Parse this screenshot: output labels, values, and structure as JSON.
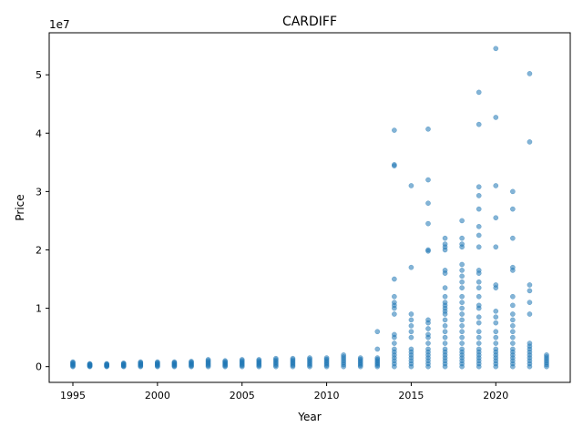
{
  "chart_data": {
    "type": "scatter",
    "title": "CARDIFF",
    "xlabel": "Year",
    "ylabel": "Price",
    "y_multiplier_label": "1e7",
    "xlim": [
      1993.6,
      2024.4
    ],
    "ylim": [
      -2.7,
      57.2
    ],
    "y_unit": "1e7",
    "grid": false,
    "color": "#1f77b4",
    "x_ticks": [
      1995,
      2000,
      2005,
      2010,
      2015,
      2020
    ],
    "x_tick_labels": [
      "1995",
      "2000",
      "2005",
      "2010",
      "2015",
      "2020"
    ],
    "y_ticks": [
      0,
      1,
      2,
      3,
      4,
      5
    ],
    "y_tick_labels": [
      "0",
      "1",
      "2",
      "3",
      "4",
      "5"
    ],
    "base_points": [
      {
        "year": 1995,
        "max": 0.08
      },
      {
        "year": 1996,
        "max": 0.05
      },
      {
        "year": 1997,
        "max": 0.05
      },
      {
        "year": 1998,
        "max": 0.06
      },
      {
        "year": 1999,
        "max": 0.08
      },
      {
        "year": 2000,
        "max": 0.08
      },
      {
        "year": 2001,
        "max": 0.08
      },
      {
        "year": 2002,
        "max": 0.09
      },
      {
        "year": 2003,
        "max": 0.12
      },
      {
        "year": 2004,
        "max": 0.1
      },
      {
        "year": 2005,
        "max": 0.12
      },
      {
        "year": 2006,
        "max": 0.12
      },
      {
        "year": 2007,
        "max": 0.14
      },
      {
        "year": 2008,
        "max": 0.14
      },
      {
        "year": 2009,
        "max": 0.15
      },
      {
        "year": 2010,
        "max": 0.15
      },
      {
        "year": 2011,
        "max": 0.2
      },
      {
        "year": 2012,
        "max": 0.15
      },
      {
        "year": 2013,
        "max": 0.15
      },
      {
        "year": 2014,
        "max": 0.3
      },
      {
        "year": 2015,
        "max": 0.3
      },
      {
        "year": 2016,
        "max": 0.3
      },
      {
        "year": 2017,
        "max": 0.3
      },
      {
        "year": 2018,
        "max": 0.3
      },
      {
        "year": 2019,
        "max": 0.3
      },
      {
        "year": 2020,
        "max": 0.3
      },
      {
        "year": 2021,
        "max": 0.3
      },
      {
        "year": 2022,
        "max": 0.3
      },
      {
        "year": 2023,
        "max": 0.2
      }
    ],
    "outliers": [
      [
        2013,
        0.3
      ],
      [
        2013,
        0.6
      ],
      [
        2014,
        0.4
      ],
      [
        2014,
        0.5
      ],
      [
        2014,
        0.55
      ],
      [
        2014,
        0.9
      ],
      [
        2014,
        1.0
      ],
      [
        2014,
        1.05
      ],
      [
        2014,
        1.1
      ],
      [
        2014,
        1.2
      ],
      [
        2014,
        1.5
      ],
      [
        2014,
        3.44
      ],
      [
        2014,
        3.46
      ],
      [
        2014,
        4.05
      ],
      [
        2015,
        0.5
      ],
      [
        2015,
        0.6
      ],
      [
        2015,
        0.7
      ],
      [
        2015,
        0.8
      ],
      [
        2015,
        0.9
      ],
      [
        2015,
        1.7
      ],
      [
        2015,
        3.1
      ],
      [
        2016,
        0.4
      ],
      [
        2016,
        0.5
      ],
      [
        2016,
        0.55
      ],
      [
        2016,
        0.65
      ],
      [
        2016,
        0.75
      ],
      [
        2016,
        0.8
      ],
      [
        2016,
        1.98
      ],
      [
        2016,
        2.0
      ],
      [
        2016,
        2.45
      ],
      [
        2016,
        2.8
      ],
      [
        2016,
        3.2
      ],
      [
        2016,
        4.07
      ],
      [
        2017,
        0.4
      ],
      [
        2017,
        0.5
      ],
      [
        2017,
        0.6
      ],
      [
        2017,
        0.7
      ],
      [
        2017,
        0.8
      ],
      [
        2017,
        0.9
      ],
      [
        2017,
        0.95
      ],
      [
        2017,
        1.0
      ],
      [
        2017,
        1.05
      ],
      [
        2017,
        1.1
      ],
      [
        2017,
        1.2
      ],
      [
        2017,
        1.35
      ],
      [
        2017,
        1.6
      ],
      [
        2017,
        1.65
      ],
      [
        2017,
        2.0
      ],
      [
        2017,
        2.05
      ],
      [
        2017,
        2.1
      ],
      [
        2017,
        2.2
      ],
      [
        2018,
        0.4
      ],
      [
        2018,
        0.5
      ],
      [
        2018,
        0.6
      ],
      [
        2018,
        0.7
      ],
      [
        2018,
        0.8
      ],
      [
        2018,
        0.9
      ],
      [
        2018,
        1.0
      ],
      [
        2018,
        1.1
      ],
      [
        2018,
        1.2
      ],
      [
        2018,
        1.35
      ],
      [
        2018,
        1.45
      ],
      [
        2018,
        1.55
      ],
      [
        2018,
        1.65
      ],
      [
        2018,
        1.75
      ],
      [
        2018,
        2.05
      ],
      [
        2018,
        2.1
      ],
      [
        2018,
        2.2
      ],
      [
        2018,
        2.5
      ],
      [
        2019,
        0.4
      ],
      [
        2019,
        0.5
      ],
      [
        2019,
        0.6
      ],
      [
        2019,
        0.75
      ],
      [
        2019,
        0.85
      ],
      [
        2019,
        1.0
      ],
      [
        2019,
        1.05
      ],
      [
        2019,
        1.2
      ],
      [
        2019,
        1.35
      ],
      [
        2019,
        1.45
      ],
      [
        2019,
        1.6
      ],
      [
        2019,
        1.65
      ],
      [
        2019,
        2.05
      ],
      [
        2019,
        2.25
      ],
      [
        2019,
        2.4
      ],
      [
        2019,
        2.7
      ],
      [
        2019,
        2.93
      ],
      [
        2019,
        3.08
      ],
      [
        2019,
        4.15
      ],
      [
        2019,
        4.7
      ],
      [
        2020,
        0.4
      ],
      [
        2020,
        0.5
      ],
      [
        2020,
        0.6
      ],
      [
        2020,
        0.75
      ],
      [
        2020,
        0.85
      ],
      [
        2020,
        0.95
      ],
      [
        2020,
        1.35
      ],
      [
        2020,
        1.4
      ],
      [
        2020,
        2.05
      ],
      [
        2020,
        2.55
      ],
      [
        2020,
        3.1
      ],
      [
        2020,
        4.27
      ],
      [
        2020,
        5.45
      ],
      [
        2021,
        0.4
      ],
      [
        2021,
        0.5
      ],
      [
        2021,
        0.6
      ],
      [
        2021,
        0.7
      ],
      [
        2021,
        0.8
      ],
      [
        2021,
        0.9
      ],
      [
        2021,
        1.05
      ],
      [
        2021,
        1.2
      ],
      [
        2021,
        1.65
      ],
      [
        2021,
        1.7
      ],
      [
        2021,
        2.2
      ],
      [
        2021,
        2.7
      ],
      [
        2021,
        3.0
      ],
      [
        2022,
        0.35
      ],
      [
        2022,
        0.4
      ],
      [
        2022,
        0.9
      ],
      [
        2022,
        1.1
      ],
      [
        2022,
        1.3
      ],
      [
        2022,
        1.4
      ],
      [
        2022,
        3.85
      ],
      [
        2022,
        5.02
      ]
    ]
  }
}
